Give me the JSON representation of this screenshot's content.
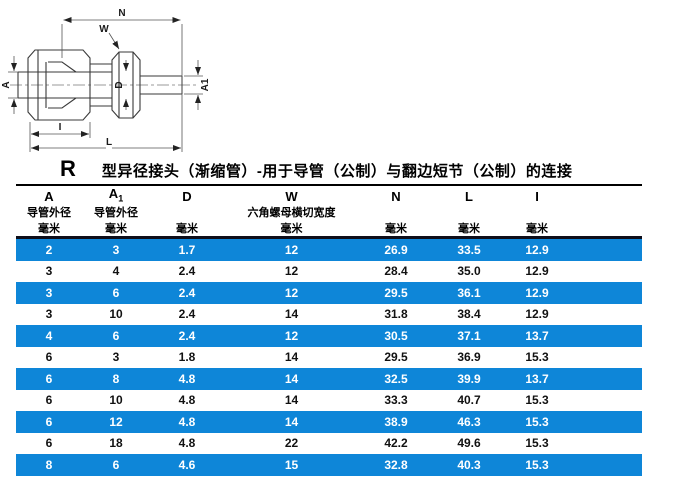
{
  "colors": {
    "row_highlight": "#0e86d8",
    "header_rule": "#0e0e1a",
    "text_on_highlight": "#ffffff",
    "drawing_line": "#3a3a3a"
  },
  "drawing": {
    "labels": {
      "n": "N",
      "w": "W",
      "a": "A",
      "d": "D",
      "a1": "A1",
      "i": "I",
      "l": "L"
    }
  },
  "title": {
    "series_letter": "R",
    "text": "型异径接头（渐缩管）-用于导管（公制）与翻边短节（公制）的连接"
  },
  "table": {
    "columns": [
      {
        "letter": "A",
        "sub": "",
        "desc": "导管外径",
        "unit": "毫米"
      },
      {
        "letter": "A",
        "sub": "1",
        "desc": "导管外径",
        "unit": "毫米"
      },
      {
        "letter": "D",
        "sub": "",
        "desc": "",
        "unit": "毫米"
      },
      {
        "letter": "W",
        "sub": "",
        "desc": "六角螺母横切宽度",
        "unit": "毫米"
      },
      {
        "letter": "N",
        "sub": "",
        "desc": "",
        "unit": "毫米"
      },
      {
        "letter": "L",
        "sub": "",
        "desc": "",
        "unit": "毫米"
      },
      {
        "letter": "I",
        "sub": "",
        "desc": "",
        "unit": "毫米"
      }
    ],
    "rows": [
      [
        "2",
        "3",
        "1.7",
        "12",
        "26.9",
        "33.5",
        "12.9"
      ],
      [
        "3",
        "4",
        "2.4",
        "12",
        "28.4",
        "35.0",
        "12.9"
      ],
      [
        "3",
        "6",
        "2.4",
        "12",
        "29.5",
        "36.1",
        "12.9"
      ],
      [
        "3",
        "10",
        "2.4",
        "14",
        "31.8",
        "38.4",
        "12.9"
      ],
      [
        "4",
        "6",
        "2.4",
        "12",
        "30.5",
        "37.1",
        "13.7"
      ],
      [
        "6",
        "3",
        "1.8",
        "14",
        "29.5",
        "36.9",
        "15.3"
      ],
      [
        "6",
        "8",
        "4.8",
        "14",
        "32.5",
        "39.9",
        "13.7"
      ],
      [
        "6",
        "10",
        "4.8",
        "14",
        "33.3",
        "40.7",
        "15.3"
      ],
      [
        "6",
        "12",
        "4.8",
        "14",
        "38.9",
        "46.3",
        "15.3"
      ],
      [
        "6",
        "18",
        "4.8",
        "22",
        "42.2",
        "49.6",
        "15.3"
      ],
      [
        "8",
        "6",
        "4.6",
        "15",
        "32.8",
        "40.3",
        "15.3"
      ]
    ]
  }
}
